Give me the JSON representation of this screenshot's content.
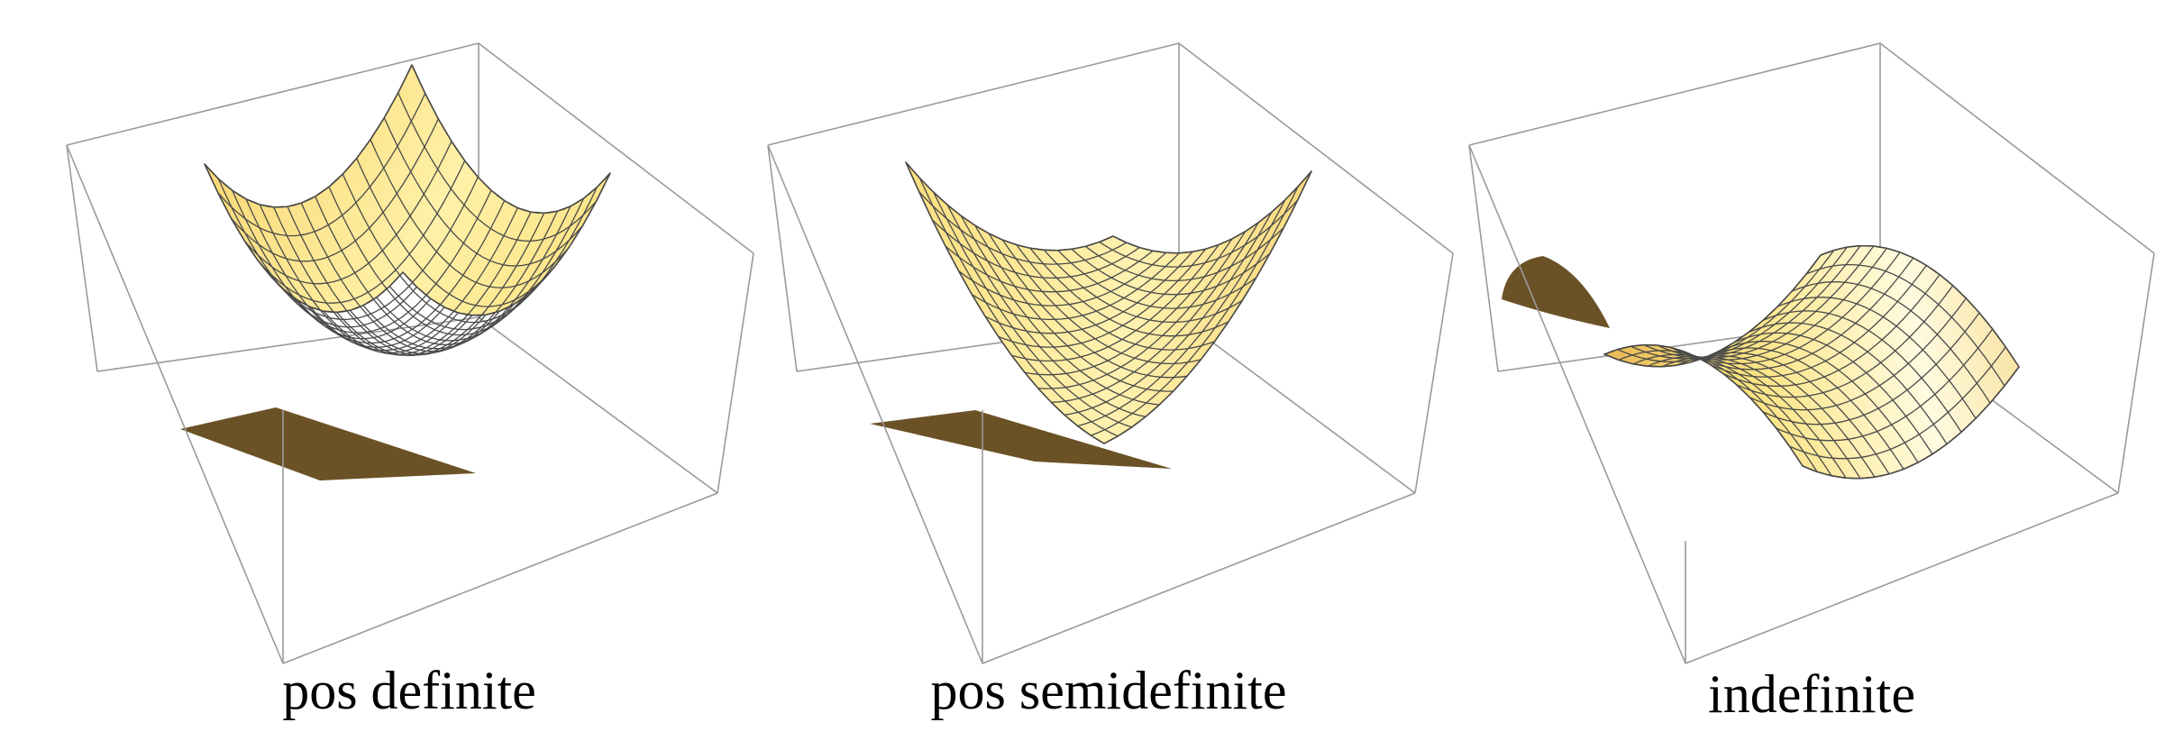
{
  "panels": [
    {
      "caption": "pos definite",
      "surface": "z = x^2 + y^2",
      "palette": "light-yellow to orange"
    },
    {
      "caption": "pos semidefinite",
      "surface": "z = (x + y)^2",
      "palette": "light-yellow to orange"
    },
    {
      "caption": "indefinite",
      "surface": "z = x^2 - y^2",
      "palette": "light-yellow to orange"
    }
  ],
  "colors": {
    "surface_light": "#fffbe0",
    "surface_mid": "#fbe37e",
    "surface_dark": "#c88a32",
    "surface_underside": "#6b5226",
    "mesh": "#4a4a4a",
    "box": "#9a9a9a"
  }
}
